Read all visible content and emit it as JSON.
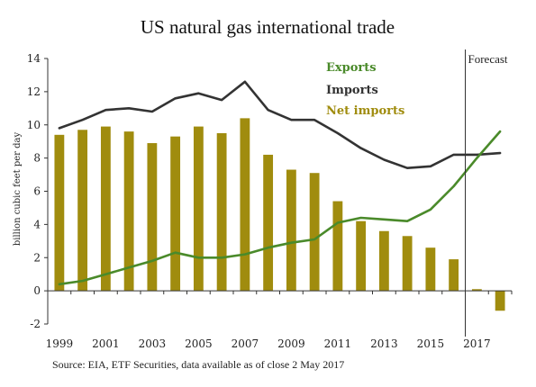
{
  "colors": {
    "net_imports": "#A08C0E",
    "exports": "#4A8A2A",
    "imports": "#333333",
    "axis": "#333333",
    "exports_label": "#4A8A2A",
    "imports_label": "#333333",
    "net_imports_label": "#A08C0E"
  },
  "chart_data": {
    "type": "bar",
    "title": "US natural gas international trade",
    "xlabel": "",
    "ylabel": "billion cubic feet per day",
    "ylim": [
      -2,
      14
    ],
    "yticks": [
      "-2",
      "0",
      "2",
      "4",
      "6",
      "8",
      "10",
      "12",
      "14"
    ],
    "x": [
      1999,
      2000,
      2001,
      2002,
      2003,
      2004,
      2005,
      2006,
      2007,
      2008,
      2009,
      2010,
      2011,
      2012,
      2013,
      2014,
      2015,
      2016,
      2017,
      2018
    ],
    "xtick_labels": [
      "1999",
      "2001",
      "2003",
      "2005",
      "2007",
      "2009",
      "2011",
      "2013",
      "2015",
      "2017"
    ],
    "series": [
      {
        "name": "Net imports",
        "kind": "bar",
        "values": [
          9.4,
          9.7,
          9.9,
          9.6,
          8.9,
          9.3,
          9.9,
          9.5,
          10.4,
          8.2,
          7.3,
          7.1,
          5.4,
          4.2,
          3.6,
          3.3,
          2.6,
          1.9,
          0.1,
          -1.2
        ]
      },
      {
        "name": "Imports",
        "kind": "line",
        "values": [
          9.8,
          10.3,
          10.9,
          11.0,
          10.8,
          11.6,
          11.9,
          11.5,
          12.6,
          10.9,
          10.3,
          10.3,
          9.5,
          8.6,
          7.9,
          7.4,
          7.5,
          8.2,
          8.2,
          8.3
        ]
      },
      {
        "name": "Exports",
        "kind": "line",
        "values": [
          0.4,
          0.6,
          1.0,
          1.4,
          1.8,
          2.3,
          2.0,
          2.0,
          2.2,
          2.6,
          2.9,
          3.1,
          4.1,
          4.4,
          4.3,
          4.2,
          4.9,
          6.3,
          8.0,
          9.6
        ]
      }
    ],
    "legend": [
      "Exports",
      "Imports",
      "Net imports"
    ],
    "legend_position": "top-right",
    "forecast_label": "Forecast",
    "forecast_start_x": 2016.5,
    "grid": false
  },
  "source": "Source: EIA, ETF Securities, data available as of close 2 May 2017"
}
